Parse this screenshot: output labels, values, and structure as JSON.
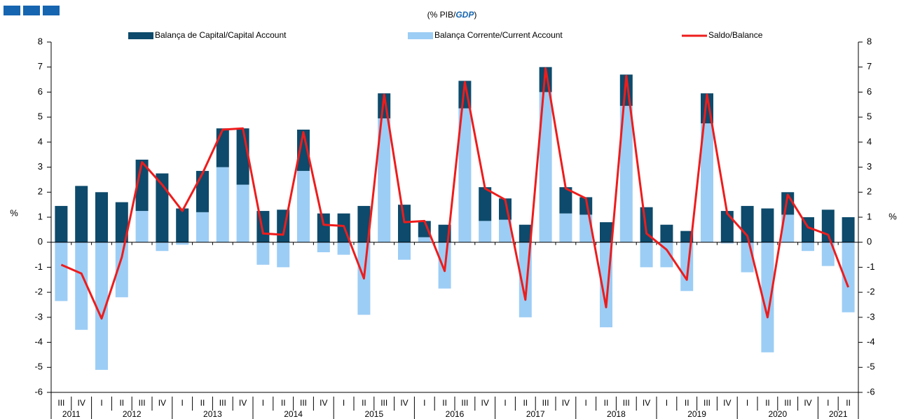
{
  "chart_data": {
    "type": "stacked-bar-line",
    "title": [
      "(% PIB/",
      "GDP",
      ")"
    ],
    "y_label": "%",
    "y2_label": "%",
    "categories": [
      "III",
      "IV",
      "I",
      "II",
      "III",
      "IV",
      "I",
      "II",
      "III",
      "IV",
      "I",
      "II",
      "III",
      "IV",
      "I",
      "II",
      "III",
      "IV",
      "I",
      "II",
      "III",
      "IV",
      "I",
      "II",
      "III",
      "IV",
      "I",
      "II",
      "III",
      "IV",
      "I",
      "II",
      "III",
      "IV",
      "I",
      "II",
      "III",
      "IV",
      "I",
      "II"
    ],
    "years": [
      "2011",
      "2012",
      "2013",
      "2014",
      "2015",
      "2016",
      "2017",
      "2018",
      "2019",
      "2020",
      "2021"
    ],
    "series": [
      {
        "name": "Balança de Capital/Capital Account",
        "kind": "bar",
        "color": "#0d4a6b",
        "values": [
          1.45,
          2.25,
          2.0,
          1.6,
          2.05,
          2.75,
          1.35,
          1.65,
          1.55,
          2.25,
          1.25,
          1.3,
          1.65,
          1.15,
          1.15,
          1.45,
          1.0,
          1.5,
          0.65,
          0.7,
          1.1,
          1.35,
          0.85,
          0.7,
          1.0,
          1.05,
          0.7,
          0.8,
          1.25,
          1.4,
          0.7,
          0.45,
          1.2,
          1.25,
          1.45,
          1.35,
          0.9,
          1.0,
          1.3,
          1.0
        ]
      },
      {
        "name": "Balança Corrente/Current Account",
        "kind": "bar",
        "color": "#9ccdf5",
        "values": [
          -2.35,
          -3.5,
          -5.1,
          -2.2,
          1.25,
          -0.35,
          -0.1,
          1.2,
          3.0,
          2.3,
          -0.9,
          -1.0,
          2.85,
          -0.4,
          -0.5,
          -2.9,
          4.95,
          -0.7,
          0.2,
          -1.85,
          5.35,
          0.85,
          0.9,
          -3.0,
          6.0,
          1.15,
          1.1,
          -3.4,
          5.45,
          -1.0,
          -1.0,
          -1.95,
          4.75,
          -0.05,
          -1.2,
          -4.4,
          1.1,
          -0.35,
          -0.95,
          -2.8
        ]
      },
      {
        "name": "Saldo/Balance",
        "kind": "line",
        "color": "#ee1c1c",
        "values": [
          -0.9,
          -1.25,
          -3.05,
          -0.6,
          3.2,
          2.3,
          1.25,
          2.75,
          4.5,
          4.55,
          0.35,
          0.3,
          4.4,
          0.7,
          0.65,
          -1.45,
          5.9,
          0.8,
          0.85,
          -1.15,
          6.4,
          2.15,
          1.7,
          -2.3,
          6.95,
          2.15,
          1.75,
          -2.6,
          6.65,
          0.35,
          -0.3,
          -1.5,
          5.9,
          1.15,
          0.25,
          -3.0,
          1.9,
          0.6,
          0.3,
          -1.8
        ]
      }
    ],
    "ylim": [
      -6,
      8
    ],
    "yticks": [
      -6,
      -5,
      -4,
      -3,
      -2,
      -1,
      0,
      1,
      2,
      3,
      4,
      5,
      6,
      7,
      8
    ],
    "y2lim": [
      -6,
      8
    ],
    "y2ticks": [
      -6,
      -5,
      -4,
      -3,
      -2,
      -1,
      0,
      1,
      2,
      3,
      4,
      5,
      6,
      7,
      8
    ],
    "grid": false,
    "legend": "top"
  }
}
